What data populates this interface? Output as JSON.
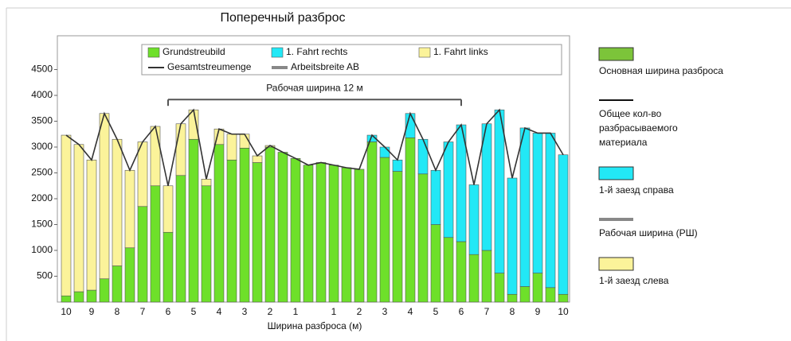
{
  "chart_data": {
    "type": "bar",
    "title": "Поперечный разброс",
    "x_label": "Ширина разброса (м)",
    "categories": [
      "10",
      null,
      "9",
      null,
      "8",
      null,
      "7",
      null,
      "6",
      null,
      "5",
      null,
      "4",
      null,
      "3",
      null,
      "2",
      null,
      "1",
      null,
      null,
      "1",
      null,
      "2",
      null,
      "3",
      null,
      "4",
      null,
      "5",
      null,
      "6",
      null,
      "7",
      null,
      "8",
      null,
      "9",
      null,
      "10"
    ],
    "ylim": [
      0,
      5000
    ],
    "yticks": [
      500,
      1000,
      1500,
      2000,
      2500,
      3000,
      3500,
      4000,
      4500
    ],
    "series": [
      {
        "name": "Grundstreubild",
        "color": "#6ee02a",
        "values": [
          120,
          200,
          230,
          450,
          700,
          1050,
          1850,
          2250,
          1350,
          2450,
          3150,
          2250,
          3050,
          2750,
          2980,
          2700,
          3000,
          2900,
          2780,
          2650,
          2700,
          2650,
          2600,
          2570,
          3100,
          2800,
          2530,
          3180,
          2480,
          1500,
          1250,
          1170,
          920,
          1000,
          560,
          150,
          300,
          560,
          280,
          150
        ]
      },
      {
        "name": "1. Fahrt rechts",
        "color": "#22e8f6",
        "values": [
          0,
          0,
          0,
          0,
          0,
          0,
          0,
          0,
          0,
          0,
          0,
          0,
          0,
          0,
          0,
          0,
          0,
          0,
          0,
          0,
          0,
          0,
          0,
          0,
          130,
          200,
          220,
          470,
          670,
          1050,
          1850,
          2260,
          1350,
          2450,
          3160,
          2250,
          3070,
          2710,
          2990,
          2700
        ]
      },
      {
        "name": "1. Fahrt links",
        "color": "#fbf39a",
        "values": [
          3110,
          2850,
          2520,
          3200,
          2450,
          1500,
          1250,
          1150,
          900,
          1000,
          570,
          130,
          300,
          500,
          270,
          130,
          30,
          0,
          0,
          0,
          0,
          0,
          0,
          0,
          0,
          0,
          0,
          0,
          0,
          0,
          0,
          0,
          0,
          0,
          0,
          0,
          0,
          0,
          0,
          0
        ]
      },
      {
        "name": "Gesamtstreumenge",
        "type": "line",
        "color": "#333333",
        "values": [
          3230,
          3050,
          2750,
          3650,
          3150,
          2550,
          3100,
          3400,
          2250,
          3450,
          3720,
          2380,
          3350,
          3250,
          3250,
          2830,
          3030,
          2900,
          2780,
          2650,
          2700,
          2650,
          2600,
          2570,
          3230,
          3000,
          2750,
          3650,
          3150,
          2550,
          3100,
          3430,
          2270,
          3450,
          3720,
          2400,
          3370,
          3270,
          3270,
          2850
        ]
      },
      {
        "name": "Arbeitsbreite AB",
        "type": "legend-only",
        "color": "#888888"
      }
    ],
    "annotation": {
      "label": "Рабочая ширина 12 м",
      "y": 3920,
      "start": 8,
      "end": 31
    },
    "side_legend": [
      {
        "kind": "box",
        "color": "#7cc43a",
        "lines": [
          "Основная ширина разброса"
        ]
      },
      {
        "kind": "line",
        "color": "#111111",
        "lines": [
          "Общее кол-во",
          "разбрасываемого",
          "материала"
        ]
      },
      {
        "kind": "box",
        "color": "#22e8f6",
        "lines": [
          "1-й заезд справа"
        ]
      },
      {
        "kind": "line",
        "color": "#888888",
        "lines": [
          "Рабочая ширина (РШ)"
        ]
      },
      {
        "kind": "box",
        "color": "#fbf39a",
        "lines": [
          "1-й заезд слева"
        ]
      }
    ]
  }
}
